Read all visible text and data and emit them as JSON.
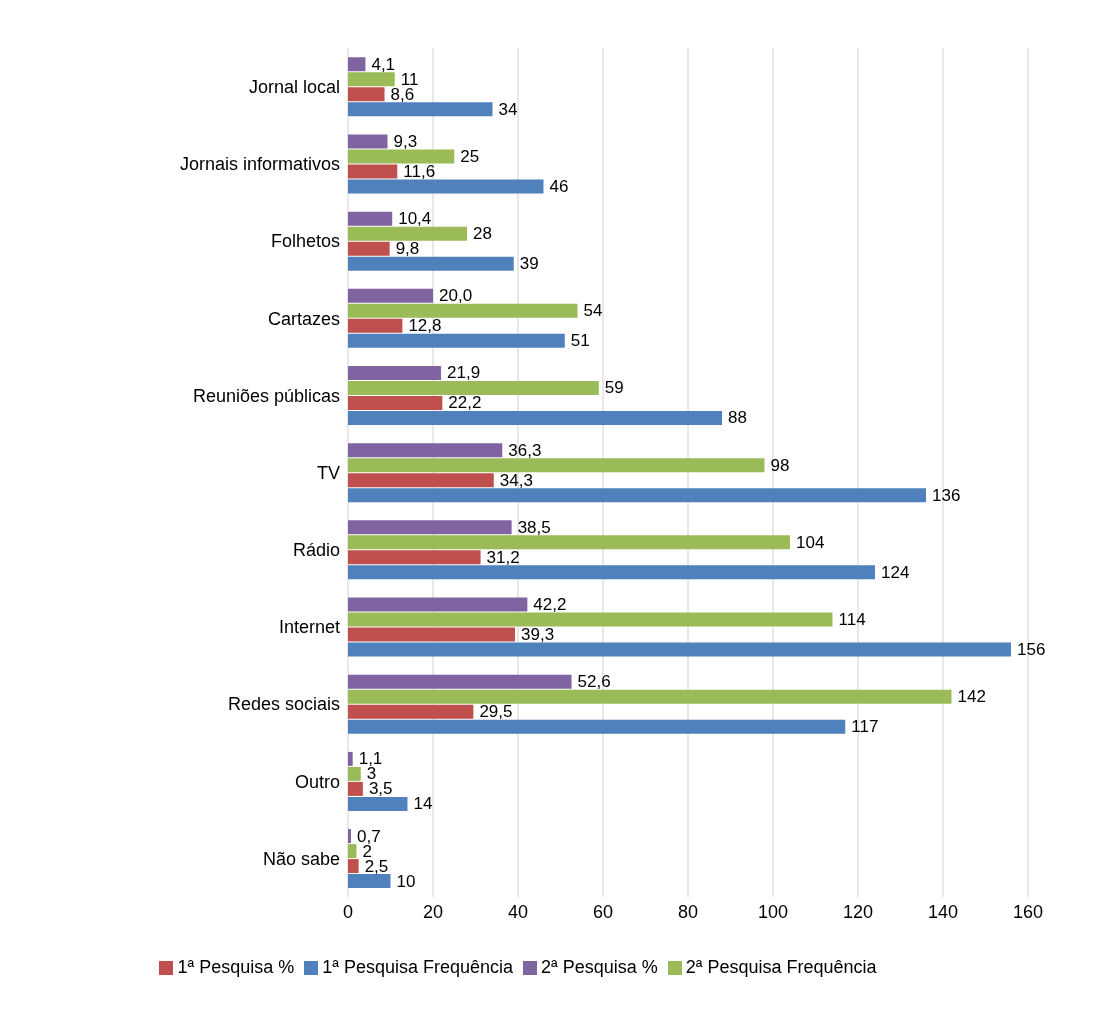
{
  "chart_data": {
    "type": "bar",
    "orientation": "horizontal",
    "categories": [
      "Jornal local",
      "Jornais informativos",
      "Folhetos",
      "Cartazes",
      "Reuniões públicas",
      "TV",
      "Rádio",
      "Internet",
      "Redes sociais",
      "Outro",
      "Não sabe"
    ],
    "series": [
      {
        "name": "2ª Pesquisa %",
        "color": "#8064a2",
        "values": [
          4.1,
          9.3,
          10.4,
          20.0,
          21.9,
          36.3,
          38.5,
          42.2,
          52.6,
          1.1,
          0.7
        ],
        "value_labels": [
          "4,1",
          "9,3",
          "10,4",
          "20,0",
          "21,9",
          "36,3",
          "38,5",
          "42,2",
          "52,6",
          "1,1",
          "0,7"
        ]
      },
      {
        "name": "2ª Pesquisa Frequência",
        "color": "#9bbb59",
        "values": [
          11,
          25,
          28,
          54,
          59,
          98,
          104,
          114,
          142,
          3,
          2
        ],
        "value_labels": [
          "11",
          "25",
          "28",
          "54",
          "59",
          "98",
          "104",
          "114",
          "142",
          "3",
          "2"
        ]
      },
      {
        "name": "1ª Pesquisa %",
        "color": "#c0504d",
        "values": [
          8.6,
          11.6,
          9.8,
          12.8,
          22.2,
          34.3,
          31.2,
          39.3,
          29.5,
          3.5,
          2.5
        ],
        "value_labels": [
          "8,6",
          "11,6",
          "9,8",
          "12,8",
          "22,2",
          "34,3",
          "31,2",
          "39,3",
          "29,5",
          "3,5",
          "2,5"
        ]
      },
      {
        "name": "1ª Pesquisa Frequência",
        "color": "#4f81bd",
        "values": [
          34,
          46,
          39,
          51,
          88,
          136,
          124,
          156,
          117,
          14,
          10
        ],
        "value_labels": [
          "34",
          "46",
          "39",
          "51",
          "88",
          "136",
          "124",
          "156",
          "117",
          "14",
          "10"
        ]
      }
    ],
    "xlim": [
      0,
      160
    ],
    "xticks": [
      0,
      20,
      40,
      60,
      80,
      100,
      120,
      140,
      160
    ],
    "grid": "x",
    "legend": "bottom"
  }
}
